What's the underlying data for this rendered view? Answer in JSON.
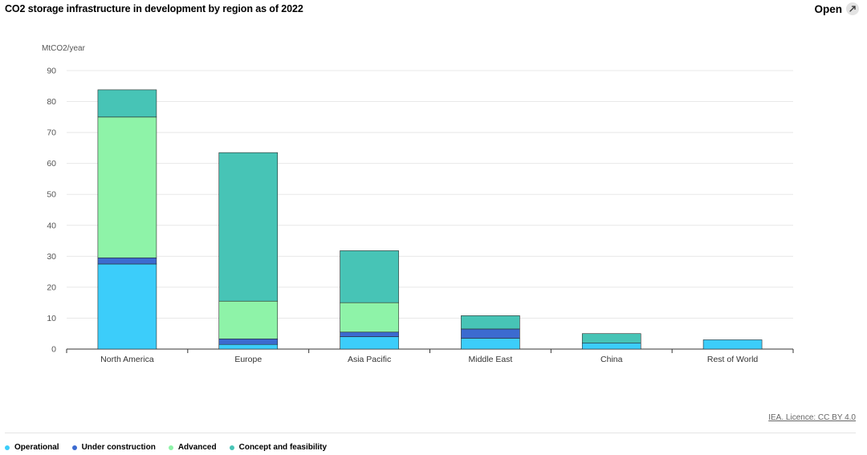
{
  "header": {
    "title": "CO2 storage infrastructure in development by region as of 2022",
    "open_label": "Open"
  },
  "footer": {
    "licence": "IEA. Licence: CC BY 4.0"
  },
  "legend": [
    {
      "label": "Operational",
      "color": "#3ccdfa"
    },
    {
      "label": "Under construction",
      "color": "#3c6bd0"
    },
    {
      "label": "Advanced",
      "color": "#8ef3a8"
    },
    {
      "label": "Concept and feasibility",
      "color": "#47c4b6"
    }
  ],
  "chart_data": {
    "type": "bar",
    "stacked": true,
    "title": "CO2 storage infrastructure in development by region as of 2022",
    "ylabel": "MtCO2/year",
    "ylim": [
      0,
      90
    ],
    "yticks": [
      0,
      10,
      20,
      30,
      40,
      50,
      60,
      70,
      80,
      90
    ],
    "grid": true,
    "legend_position": "bottom-left",
    "categories": [
      "North America",
      "Europe",
      "Asia Pacific",
      "Middle East",
      "China",
      "Rest of World"
    ],
    "series": [
      {
        "name": "Operational",
        "color": "#3ccdfa",
        "values": [
          27.5,
          1.5,
          4.0,
          3.5,
          2.0,
          3.0
        ]
      },
      {
        "name": "Under construction",
        "color": "#3c6bd0",
        "values": [
          2.0,
          1.8,
          1.5,
          3.0,
          0,
          0
        ]
      },
      {
        "name": "Advanced",
        "color": "#8ef3a8",
        "values": [
          45.5,
          12.2,
          9.5,
          0,
          0,
          0
        ]
      },
      {
        "name": "Concept and feasibility",
        "color": "#47c4b6",
        "values": [
          8.8,
          48.0,
          16.8,
          4.3,
          3.0,
          0
        ]
      }
    ]
  }
}
